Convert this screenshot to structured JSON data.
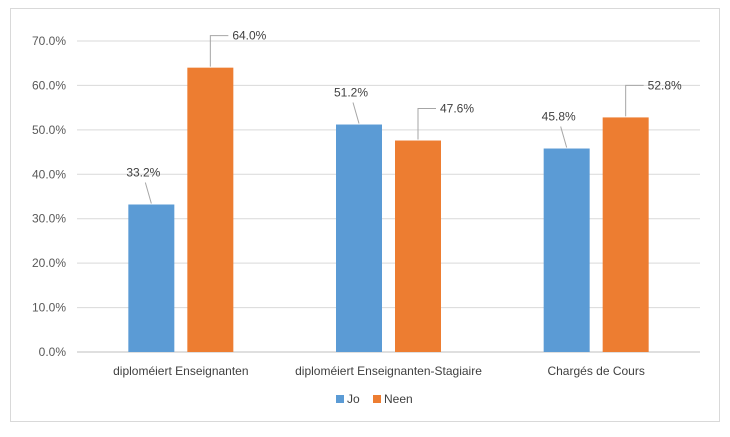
{
  "chart_data": {
    "type": "bar",
    "title": "",
    "xlabel": "",
    "ylabel": "",
    "ylim": [
      0,
      70
    ],
    "y_ticks": [
      0,
      10,
      20,
      30,
      40,
      50,
      60,
      70
    ],
    "y_tick_labels": [
      "0.0%",
      "10.0%",
      "20.0%",
      "30.0%",
      "40.0%",
      "50.0%",
      "60.0%",
      "70.0%"
    ],
    "grid": true,
    "legend_position": "bottom",
    "categories": [
      "diploméiert Enseignanten",
      "diploméiert Enseignanten-Stagiaire",
      "Chargés de Cours"
    ],
    "series": [
      {
        "name": "Jo",
        "color": "#5b9bd5",
        "values": [
          33.2,
          51.2,
          45.8
        ],
        "labels": [
          "33.2%",
          "51.2%",
          "45.8%"
        ]
      },
      {
        "name": "Neen",
        "color": "#ed7d31",
        "values": [
          64.0,
          47.6,
          52.8
        ],
        "labels": [
          "64.0%",
          "47.6%",
          "52.8%"
        ]
      }
    ]
  }
}
